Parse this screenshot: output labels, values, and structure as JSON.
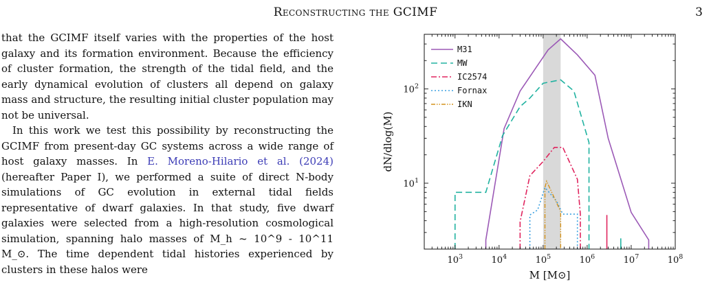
{
  "header": {
    "running_title": "Reconstructing the GCIMF",
    "page_number": "3"
  },
  "body": {
    "paragraphs": [
      {
        "text": "that the GCIMF itself varies with the properties of the host galaxy and its formation environment. Because the efficiency of cluster formation, the strength of the tidal field, and the early dynamical evolution of clusters all depend on galaxy mass and structure, the resulting initial cluster population may not be universal."
      },
      {
        "pre": "In this work we test this possibility by reconstructing the GCIMF from present-day GC systems across a wide range of host galaxy masses. In ",
        "cite": "E. Moreno-Hilario et al. (2024)",
        "post": " (hereafter Paper I), we performed a suite of direct N-body simulations of GC evolution in external tidal fields representative of dwarf galaxies. In that study, five dwarf galaxies were selected from a high-resolution cosmological simulation, spanning halo masses of M_h ~ 10^9 - 10^11 M_⊙. The time dependent tidal histories experienced by clusters in these halos were"
      }
    ]
  },
  "figure": {
    "chart_data": {
      "type": "line",
      "xscale": "log",
      "yscale": "log",
      "xlim": [
        200,
        100000000
      ],
      "ylim": [
        2,
        380
      ],
      "xlabel": "M [M⊙]",
      "ylabel": "dN/dlog(M)",
      "x_ticks": [
        {
          "value": 1000,
          "base": "10",
          "exp": "3"
        },
        {
          "value": 10000,
          "base": "10",
          "exp": "4"
        },
        {
          "value": 100000,
          "base": "10",
          "exp": "5"
        },
        {
          "value": 1000000,
          "base": "10",
          "exp": "6"
        },
        {
          "value": 10000000,
          "base": "10",
          "exp": "7"
        },
        {
          "value": 100000000,
          "base": "10",
          "exp": "8"
        }
      ],
      "y_ticks": [
        {
          "value": 10,
          "base": "10",
          "exp": "1"
        },
        {
          "value": 100,
          "base": "10",
          "exp": "2"
        }
      ],
      "shaded_band": {
        "x0": 100000,
        "x1": 250000,
        "color": "#d9d9d9"
      },
      "legend_position": "top-left",
      "series": [
        {
          "name": "M31",
          "color": "#9b59b6",
          "dash": "",
          "width": 1.6,
          "points": [
            [
              5000,
              2
            ],
            [
              5000,
              2.5
            ],
            [
              13000,
              38
            ],
            [
              30000,
              95
            ],
            [
              70000,
              170
            ],
            [
              130000,
              260
            ],
            [
              250000,
              340
            ],
            [
              600000,
              230
            ],
            [
              1500000,
              140
            ],
            [
              3000000,
              30
            ],
            [
              10000000,
              4.9
            ],
            [
              25000000,
              2.5
            ],
            [
              25000000,
              2
            ]
          ]
        },
        {
          "name": "MW",
          "color": "#20b2a0",
          "dash": "9,5",
          "width": 1.6,
          "points": [
            [
              1000,
              2
            ],
            [
              1000,
              8
            ],
            [
              5000,
              8
            ],
            [
              12000,
              32
            ],
            [
              30000,
              65
            ],
            [
              50000,
              80
            ],
            [
              100000,
              115
            ],
            [
              250000,
              125
            ],
            [
              500000,
              95
            ],
            [
              1100000,
              27
            ],
            [
              1100000,
              2
            ]
          ]
        },
        {
          "name": "IC2574",
          "color": "#e0245e",
          "dash": "8,3,2,3",
          "width": 1.6,
          "points": [
            [
              30000,
              2
            ],
            [
              30000,
              3.9
            ],
            [
              50000,
              12
            ],
            [
              100000,
              17
            ],
            [
              180000,
              24
            ],
            [
              280000,
              24
            ],
            [
              600000,
              11
            ],
            [
              700000,
              4.7
            ],
            [
              700000,
              2
            ]
          ]
        },
        {
          "name": "Fornax",
          "color": "#3aa0e0",
          "dash": "2,3",
          "width": 1.6,
          "points": [
            [
              50000,
              2
            ],
            [
              50000,
              4.6
            ],
            [
              75000,
              5.2
            ],
            [
              110000,
              9
            ],
            [
              200000,
              6.5
            ],
            [
              280000,
              4.7
            ],
            [
              600000,
              4.7
            ],
            [
              600000,
              2
            ]
          ]
        },
        {
          "name": "IKN",
          "color": "#d4921a",
          "dash": "6,2,1.5,2,1.5,2",
          "width": 1.4,
          "points": [
            [
              110000,
              2
            ],
            [
              110000,
              9
            ],
            [
              120000,
              10.5
            ],
            [
              250000,
              5
            ],
            [
              250000,
              2
            ]
          ]
        }
      ],
      "extra_segments": [
        {
          "series": "IC2574",
          "color": "#e0245e",
          "x": 2800000,
          "y0": 2,
          "y1": 4.6
        },
        {
          "series": "MW",
          "color": "#20b2a0",
          "x": 5800000,
          "y0": 2,
          "y1": 2.6
        }
      ]
    }
  }
}
